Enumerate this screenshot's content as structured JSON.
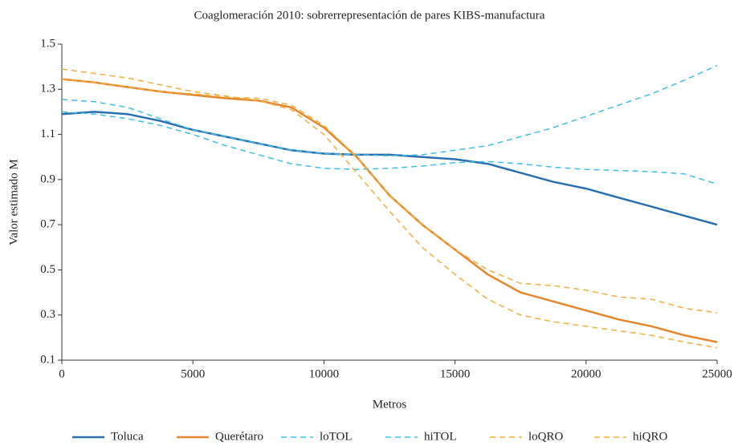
{
  "chart_data": {
    "type": "line",
    "title": "Coaglomeración 2010: sobrerrepresentación de pares KIBS-manufactura",
    "x_label": "Metros",
    "y_label": "Valor estimado M",
    "x": [
      0,
      1250,
      2500,
      3750,
      5000,
      6250,
      7500,
      8750,
      10000,
      11250,
      12500,
      13750,
      15000,
      16250,
      17500,
      18750,
      20000,
      21250,
      22500,
      23750,
      25000
    ],
    "series": [
      {
        "name": "Toluca",
        "color": "#2a6fb0",
        "line_style": "solid",
        "values": [
          1.19,
          1.2,
          1.19,
          1.16,
          1.12,
          1.09,
          1.06,
          1.03,
          1.015,
          1.01,
          1.01,
          1.0,
          0.99,
          0.97,
          0.93,
          0.89,
          0.86,
          0.82,
          0.78,
          0.74,
          0.7
        ]
      },
      {
        "name": "Querétaro",
        "color": "#e5862b",
        "line_style": "solid",
        "values": [
          1.345,
          1.33,
          1.31,
          1.29,
          1.275,
          1.26,
          1.25,
          1.22,
          1.13,
          1.0,
          0.83,
          0.7,
          0.59,
          0.48,
          0.4,
          0.36,
          0.32,
          0.28,
          0.25,
          0.21,
          0.18
        ]
      },
      {
        "name": "loTOL",
        "color": "#3fbde6",
        "line_style": "dashed",
        "values": [
          1.2,
          1.19,
          1.17,
          1.14,
          1.1,
          1.05,
          1.01,
          0.97,
          0.95,
          0.945,
          0.95,
          0.96,
          0.975,
          0.98,
          0.97,
          0.955,
          0.945,
          0.94,
          0.935,
          0.925,
          0.88
        ]
      },
      {
        "name": "hiTOL",
        "color": "#3fbde6",
        "line_style": "dashed",
        "values": [
          1.255,
          1.245,
          1.22,
          1.17,
          1.12,
          1.09,
          1.06,
          1.03,
          1.015,
          1.01,
          1.005,
          1.01,
          1.03,
          1.05,
          1.09,
          1.13,
          1.18,
          1.23,
          1.28,
          1.34,
          1.405
        ]
      },
      {
        "name": "loQRO",
        "color": "#f2ad3d",
        "line_style": "dashed",
        "values": [
          1.345,
          1.33,
          1.31,
          1.29,
          1.28,
          1.265,
          1.26,
          1.23,
          1.14,
          1.0,
          0.83,
          0.7,
          0.59,
          0.5,
          0.44,
          0.43,
          0.41,
          0.38,
          0.37,
          0.33,
          0.31
        ]
      },
      {
        "name": "hiQRO",
        "color": "#f2ad3d",
        "line_style": "dashed",
        "values": [
          1.39,
          1.37,
          1.35,
          1.32,
          1.29,
          1.27,
          1.25,
          1.21,
          1.1,
          0.93,
          0.76,
          0.6,
          0.48,
          0.37,
          0.3,
          0.27,
          0.25,
          0.23,
          0.21,
          0.18,
          0.155
        ]
      }
    ],
    "xlim": [
      0,
      25000
    ],
    "xticks": [
      0,
      5000,
      10000,
      15000,
      20000,
      25000
    ],
    "ylim": [
      0.1,
      1.5
    ],
    "yticks": [
      0.1,
      0.3,
      0.5,
      0.7,
      0.9,
      1.1,
      1.3,
      1.5
    ],
    "grid": false,
    "legend_position": "bottom"
  }
}
